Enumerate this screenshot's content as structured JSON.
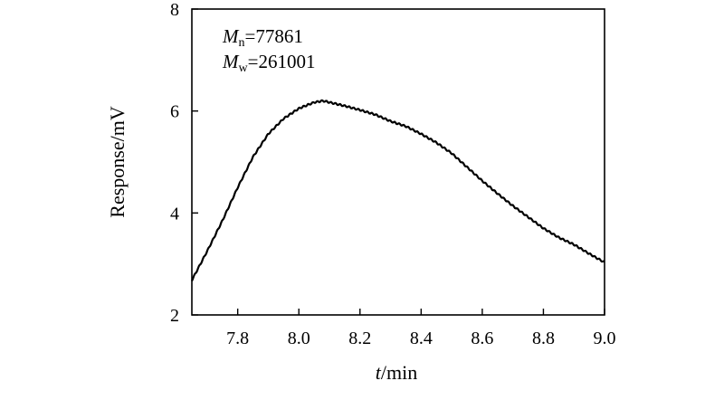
{
  "chart_data": {
    "type": "line",
    "title": "",
    "xlabel_var": "t",
    "xlabel_unit": "/min",
    "ylabel": "Response/mV",
    "xlim": [
      7.65,
      9.0
    ],
    "ylim": [
      2,
      8
    ],
    "xticks": [
      7.8,
      8.0,
      8.2,
      8.4,
      8.6,
      8.8,
      9.0
    ],
    "xtick_labels": [
      "7.8",
      "8.0",
      "8.2",
      "8.4",
      "8.6",
      "8.8",
      "9.0"
    ],
    "yticks": [
      2,
      4,
      6,
      8
    ],
    "ytick_labels": [
      "2",
      "4",
      "6",
      "8"
    ],
    "grid": false,
    "legend": "none",
    "annotations": {
      "mn_symbol": "M",
      "mn_sub": "n",
      "mn_value": "=77861",
      "mw_symbol": "M",
      "mw_sub": "w",
      "mw_value": "=261001"
    },
    "series": [
      {
        "line_color": "#000000",
        "x": [
          7.65,
          7.7,
          7.75,
          7.8,
          7.85,
          7.9,
          7.95,
          8.0,
          8.05,
          8.08,
          8.1,
          8.15,
          8.2,
          8.25,
          8.3,
          8.35,
          8.4,
          8.45,
          8.5,
          8.55,
          8.6,
          8.65,
          8.7,
          8.75,
          8.8,
          8.85,
          8.9,
          8.95,
          9.0
        ],
        "y": [
          2.68,
          3.25,
          3.85,
          4.5,
          5.1,
          5.55,
          5.85,
          6.05,
          6.17,
          6.2,
          6.17,
          6.1,
          6.02,
          5.93,
          5.8,
          5.7,
          5.55,
          5.38,
          5.17,
          4.9,
          4.63,
          4.38,
          4.14,
          3.92,
          3.7,
          3.52,
          3.38,
          3.2,
          3.03
        ]
      }
    ]
  }
}
